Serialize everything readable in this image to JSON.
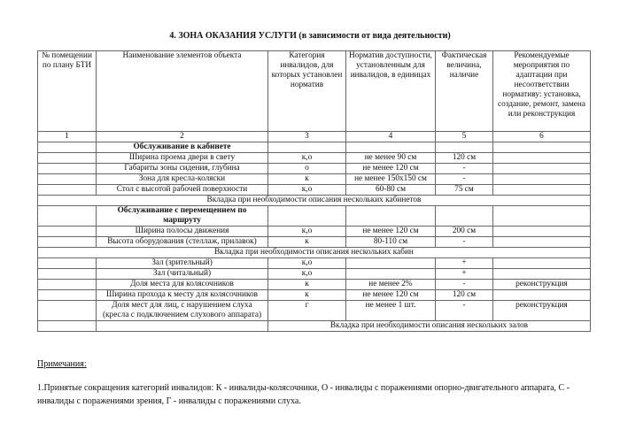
{
  "title": "4. ЗОНА ОКАЗАНИЯ УСЛУГИ (в зависимости от вида деятельности)",
  "table": {
    "headers": [
      "№ помещении по плану БТИ",
      "Наименование элементов объекта",
      "Категория инвалидов, для которых установлен норматив",
      "Норматив доступности, установленным для инвалидов, в единицах",
      "Фактическая величина, наличие",
      "Рекомендуемые мероприятия по адаптации при несоответствии нормативу: установка, создание, ремонт, замена или реконструкция"
    ],
    "numbers": [
      "1",
      "2",
      "3",
      "4",
      "5",
      "6"
    ],
    "section1": "Обслуживание в кабинете",
    "rows1": [
      [
        "Ширина проема двери в свету",
        "к,о",
        "не менее 90 см",
        "120 см",
        ""
      ],
      [
        "Габариты зоны сидения, глубина",
        "о",
        "не менее 120 см",
        "-",
        ""
      ],
      [
        "Зона для кресла-коляски",
        "к",
        "не менее 150x150 см",
        "-",
        ""
      ],
      [
        "Стол с высотой рабочей поверхности",
        "к,о",
        "60-80 см",
        "75 см",
        ""
      ]
    ],
    "insert1": "Вкладка при необходимости описания нескольких кабинетов",
    "section2": "Обслуживание с перемещением по маршруту",
    "rows2": [
      [
        "Ширина полосы движения",
        "к,о",
        "не менее 120 см",
        "200 см",
        ""
      ],
      [
        "Высота оборудования (стеллаж, прилавок)",
        "к",
        "80-110 см",
        "-",
        ""
      ]
    ],
    "insert2": "Вкладка при необходимости описания нескольких кабин",
    "rows3": [
      [
        "Зал (зрительный)",
        "к,о",
        "",
        "+",
        ""
      ],
      [
        "Зал (читальный)",
        "к,о",
        "",
        "+",
        ""
      ],
      [
        "Доля места для колясочников",
        "к",
        "не менее 2%",
        "-",
        "реконструкция"
      ],
      [
        "Ширина прохода к месту для колясочников",
        "к",
        "не менее 120 см",
        "120 см",
        ""
      ],
      [
        "Доля мест для лиц, с нарушением слуха (кресла с подключением слухового аппарата)",
        "г",
        "не менее 1 шт.",
        "-",
        "реконструкция"
      ]
    ],
    "insert3": "Вкладка при необходимости описания нескольких залов"
  },
  "notes": {
    "heading": "Примечания:",
    "text": "1.Принятые сокращения категорий инвалидов: К - инвалиды-колясочники, О - инвалиды с поражениями опорно-двигательного аппарата, С - инвалиды с поражениями зрения, Г - инвалиды с поражениями слуха."
  }
}
